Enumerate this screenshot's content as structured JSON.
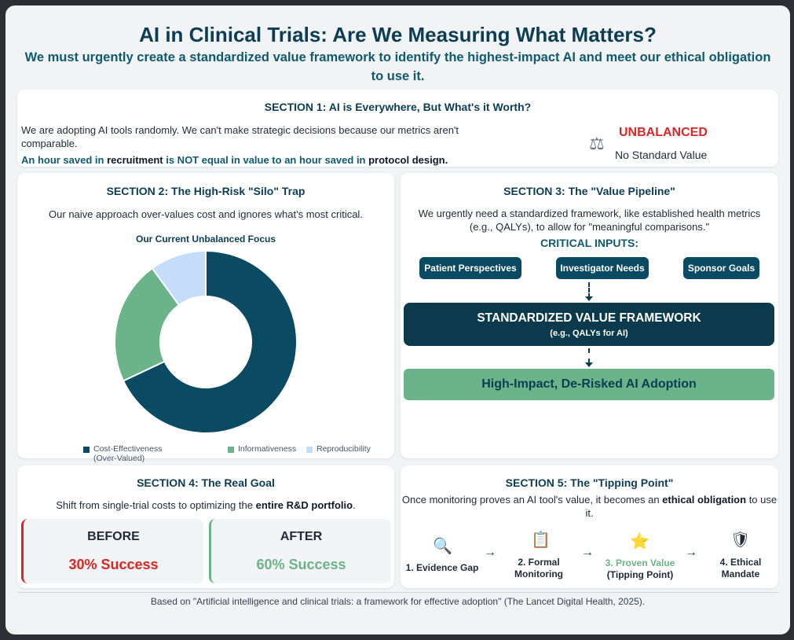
{
  "header": {
    "title": "AI in Clinical Trials: Are We Measuring What Matters?",
    "subtitle": "We must urgently create a standardized value framework to identify the highest-impact AI and meet our ethical obligation to use it."
  },
  "section1": {
    "title": "SECTION 1: AI is Everywhere, But What's it Worth?",
    "text": "We are adopting AI tools randomly. We can't make strategic decisions because our metrics aren't comparable.",
    "highlight_a": "An hour saved in ",
    "highlight_b": "recruitment",
    "highlight_c": " is NOT equal in value to an hour saved in ",
    "highlight_d": "protocol design",
    "highlight_e": ".",
    "status_icon": "scale-icon",
    "status_title": "UNBALANCED",
    "status_sub": "No Standard Value"
  },
  "section2": {
    "title": "SECTION 2: The High-Risk \"Silo\" Trap",
    "text": "Our naive approach over-values cost and ignores what's most critical."
  },
  "chart_data": {
    "type": "pie",
    "title": "Our Current Unbalanced Focus",
    "categories": [
      "Cost-Effectiveness (Over-Valued)",
      "Informativeness",
      "Reproducibility"
    ],
    "legend_lines": [
      [
        "Cost-Effectiveness",
        "(Over-Valued)"
      ],
      [
        "Informativeness"
      ],
      [
        "Reproducibility"
      ]
    ],
    "values": [
      68,
      22,
      10
    ],
    "colors": [
      "#0b4a63",
      "#6bb389",
      "#c6dcfb"
    ],
    "donut": true,
    "legend": "bottom"
  },
  "section3": {
    "title": "SECTION 3: The \"Value Pipeline\"",
    "text": "We urgently need a standardized framework, like established health metrics (e.g., QALYs), to allow for \"meaningful comparisons.\"",
    "inputs_title": "CRITICAL INPUTS:",
    "inputs": [
      "Patient Perspectives",
      "Investigator Needs",
      "Sponsor Goals"
    ],
    "framework_title": "STANDARDIZED VALUE FRAMEWORK",
    "framework_sub": "(e.g., QALYs for AI)",
    "outcome": "High-Impact, De-Risked AI Adoption"
  },
  "section4": {
    "title": "SECTION 4: The Real Goal",
    "text_a": "Shift from single-trial costs to optimizing the ",
    "text_b": "entire R&D portfolio",
    "text_c": ".",
    "before_label": "BEFORE",
    "before_value": "30% Success",
    "after_label": "AFTER",
    "after_value": "60% Success",
    "before_color": "#dc2626",
    "after_color": "#6bb389"
  },
  "section5": {
    "title": "SECTION 5: The \"Tipping Point\"",
    "text_a": "Once monitoring proves an AI tool's value, it becomes an ",
    "text_b": "ethical obligation",
    "text_c": " to use it.",
    "steps": [
      {
        "icon": "magnifier-icon",
        "label": "1. Evidence Gap",
        "label2": ""
      },
      {
        "icon": "clipboard-icon",
        "label": "2. Formal",
        "label2": "Monitoring"
      },
      {
        "icon": "star-icon",
        "label": "3. Proven Value",
        "label2": "(Tipping Point)"
      },
      {
        "icon": "shield-icon",
        "label": "4. Ethical",
        "label2": "Mandate"
      }
    ]
  },
  "footer": {
    "text": "Based on \"Artificial intelligence and clinical trials: a framework for effective adoption\" (The Lancet Digital Health, 2025)."
  }
}
